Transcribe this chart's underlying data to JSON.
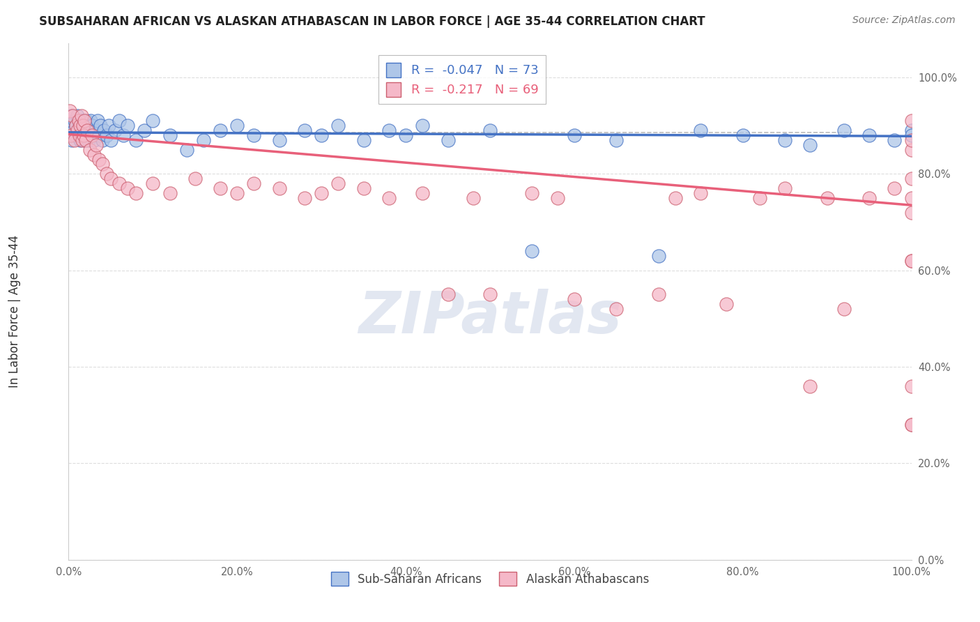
{
  "title": "SUBSAHARAN AFRICAN VS ALASKAN ATHABASCAN IN LABOR FORCE | AGE 35-44 CORRELATION CHART",
  "source": "Source: ZipAtlas.com",
  "xlabel": "",
  "ylabel": "In Labor Force | Age 35-44",
  "legend_label1": "Sub-Saharan Africans",
  "legend_label2": "Alaskan Athabascans",
  "R1": -0.047,
  "N1": 73,
  "R2": -0.217,
  "N2": 69,
  "color1": "#aec6e8",
  "color2": "#f5b8c8",
  "line_color1": "#4472c4",
  "line_color2": "#e8607a",
  "dashed_line_y": 0.885,
  "xlim": [
    0,
    1
  ],
  "ylim": [
    0,
    1.07
  ],
  "yticks": [
    0.0,
    0.2,
    0.4,
    0.6,
    0.8,
    1.0
  ],
  "xticks": [
    0.0,
    0.2,
    0.4,
    0.6,
    0.8,
    1.0
  ],
  "watermark": "ZIPatlas",
  "title_fontsize": 12,
  "source_fontsize": 10,
  "legend_fontsize": 13,
  "ylabel_fontsize": 12,
  "blue_x": [
    0.001,
    0.002,
    0.003,
    0.004,
    0.005,
    0.006,
    0.007,
    0.008,
    0.009,
    0.01,
    0.012,
    0.013,
    0.014,
    0.015,
    0.016,
    0.017,
    0.018,
    0.019,
    0.02,
    0.021,
    0.022,
    0.023,
    0.024,
    0.025,
    0.026,
    0.027,
    0.028,
    0.03,
    0.032,
    0.034,
    0.036,
    0.038,
    0.04,
    0.042,
    0.045,
    0.048,
    0.05,
    0.055,
    0.06,
    0.065,
    0.07,
    0.08,
    0.09,
    0.1,
    0.12,
    0.14,
    0.16,
    0.18,
    0.2,
    0.22,
    0.25,
    0.28,
    0.3,
    0.32,
    0.35,
    0.38,
    0.4,
    0.42,
    0.45,
    0.5,
    0.55,
    0.6,
    0.65,
    0.7,
    0.75,
    0.8,
    0.85,
    0.88,
    0.92,
    0.95,
    0.98,
    1.0,
    1.0
  ],
  "blue_y": [
    0.9,
    0.88,
    0.92,
    0.87,
    0.9,
    0.89,
    0.91,
    0.88,
    0.9,
    0.92,
    0.88,
    0.9,
    0.87,
    0.89,
    0.91,
    0.88,
    0.9,
    0.87,
    0.89,
    0.91,
    0.88,
    0.9,
    0.87,
    0.89,
    0.91,
    0.88,
    0.9,
    0.87,
    0.89,
    0.91,
    0.88,
    0.9,
    0.87,
    0.89,
    0.88,
    0.9,
    0.87,
    0.89,
    0.91,
    0.88,
    0.9,
    0.87,
    0.89,
    0.91,
    0.88,
    0.85,
    0.87,
    0.89,
    0.9,
    0.88,
    0.87,
    0.89,
    0.88,
    0.9,
    0.87,
    0.89,
    0.88,
    0.9,
    0.87,
    0.89,
    0.64,
    0.88,
    0.87,
    0.63,
    0.89,
    0.88,
    0.87,
    0.86,
    0.89,
    0.88,
    0.87,
    0.89,
    0.88
  ],
  "pink_x": [
    0.001,
    0.003,
    0.005,
    0.007,
    0.009,
    0.01,
    0.012,
    0.013,
    0.014,
    0.015,
    0.016,
    0.017,
    0.018,
    0.019,
    0.02,
    0.022,
    0.025,
    0.028,
    0.03,
    0.033,
    0.036,
    0.04,
    0.045,
    0.05,
    0.06,
    0.07,
    0.08,
    0.1,
    0.12,
    0.15,
    0.18,
    0.2,
    0.22,
    0.25,
    0.28,
    0.3,
    0.32,
    0.35,
    0.38,
    0.42,
    0.45,
    0.48,
    0.5,
    0.55,
    0.58,
    0.6,
    0.65,
    0.7,
    0.72,
    0.75,
    0.78,
    0.82,
    0.85,
    0.88,
    0.9,
    0.92,
    0.95,
    0.98,
    1.0,
    1.0,
    1.0,
    1.0,
    1.0,
    1.0,
    1.0,
    1.0,
    1.0,
    1.0,
    1.0
  ],
  "pink_y": [
    0.93,
    0.88,
    0.92,
    0.87,
    0.9,
    0.89,
    0.91,
    0.88,
    0.9,
    0.92,
    0.87,
    0.9,
    0.88,
    0.91,
    0.87,
    0.89,
    0.85,
    0.88,
    0.84,
    0.86,
    0.83,
    0.82,
    0.8,
    0.79,
    0.78,
    0.77,
    0.76,
    0.78,
    0.76,
    0.79,
    0.77,
    0.76,
    0.78,
    0.77,
    0.75,
    0.76,
    0.78,
    0.77,
    0.75,
    0.76,
    0.55,
    0.75,
    0.55,
    0.76,
    0.75,
    0.54,
    0.52,
    0.55,
    0.75,
    0.76,
    0.53,
    0.75,
    0.77,
    0.36,
    0.75,
    0.52,
    0.75,
    0.77,
    0.91,
    0.85,
    0.87,
    0.79,
    0.75,
    0.72,
    0.62,
    0.28,
    0.36,
    0.62,
    0.28
  ]
}
